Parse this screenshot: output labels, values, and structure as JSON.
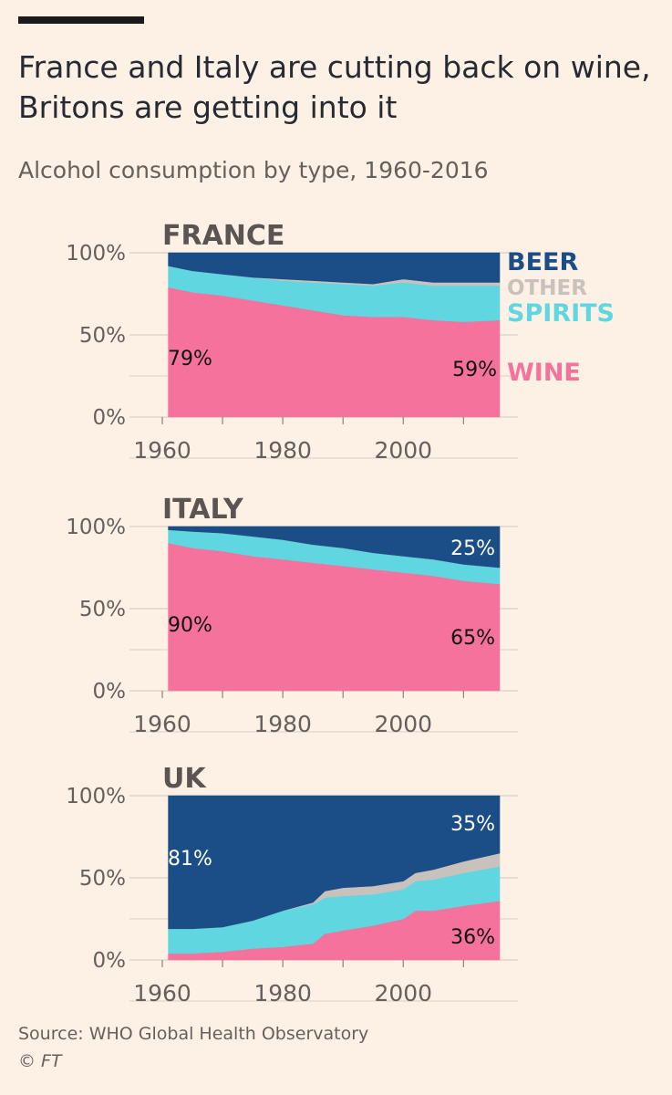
{
  "header": {
    "title": "France and Italy are cutting back on wine, Britons are getting into it",
    "subtitle": "Alcohol consumption by type, 1960-2016"
  },
  "footer": {
    "source": "Source: WHO Global Health Observatory",
    "copyright": "© FT"
  },
  "legend": [
    "BEER",
    "OTHER",
    "SPIRITS",
    "WINE"
  ],
  "colors": {
    "beer": "#1b4d86",
    "other": "#c9c2bc",
    "spirits": "#5fd6e0",
    "wine": "#f5729c",
    "grid": "#d9cfc7",
    "axis_text": "#66605c",
    "panel_title": "#5a5552"
  },
  "chart_data": [
    {
      "type": "area",
      "title": "FRANCE",
      "stacked": true,
      "x": [
        1961,
        1965,
        1970,
        1975,
        1980,
        1985,
        1990,
        1995,
        2000,
        2005,
        2010,
        2016
      ],
      "series": [
        {
          "name": "WINE",
          "values": [
            79,
            76,
            74,
            71,
            68,
            65,
            62,
            61,
            61,
            59,
            58,
            59
          ]
        },
        {
          "name": "SPIRITS",
          "values": [
            13,
            13,
            13,
            14,
            15,
            17,
            19,
            19,
            21,
            21,
            22,
            21
          ]
        },
        {
          "name": "OTHER",
          "values": [
            0,
            0,
            0,
            0,
            1,
            1,
            1,
            1,
            2,
            2,
            2,
            2
          ]
        },
        {
          "name": "BEER",
          "values": [
            8,
            11,
            13,
            15,
            16,
            17,
            18,
            19,
            16,
            18,
            18,
            18
          ]
        }
      ],
      "xlim": [
        1960,
        2016
      ],
      "ylim": [
        0,
        100
      ],
      "ytick_labels": [
        "0%",
        "50%",
        "100%"
      ],
      "xtick_labels": [
        "1960",
        "1980",
        "2000"
      ],
      "annotations": [
        "79%",
        "59%"
      ],
      "legend_placement": "right"
    },
    {
      "type": "area",
      "title": "ITALY",
      "stacked": true,
      "x": [
        1961,
        1965,
        1970,
        1975,
        1980,
        1985,
        1990,
        1995,
        2000,
        2005,
        2010,
        2016
      ],
      "series": [
        {
          "name": "WINE",
          "values": [
            90,
            87,
            85,
            82,
            80,
            78,
            76,
            74,
            72,
            70,
            67,
            65
          ]
        },
        {
          "name": "SPIRITS",
          "values": [
            8,
            10,
            11,
            12,
            12,
            11,
            11,
            10,
            10,
            10,
            10,
            10
          ]
        },
        {
          "name": "OTHER",
          "values": [
            0,
            0,
            0,
            0,
            0,
            0,
            0,
            0,
            0,
            0,
            0,
            0
          ]
        },
        {
          "name": "BEER",
          "values": [
            2,
            3,
            4,
            6,
            8,
            11,
            13,
            16,
            18,
            20,
            23,
            25
          ]
        }
      ],
      "xlim": [
        1960,
        2016
      ],
      "ylim": [
        0,
        100
      ],
      "ytick_labels": [
        "0%",
        "50%",
        "100%"
      ],
      "xtick_labels": [
        "1960",
        "1980",
        "2000"
      ],
      "annotations": [
        "25%",
        "90%",
        "65%"
      ]
    },
    {
      "type": "area",
      "title": "UK",
      "stacked": true,
      "x": [
        1961,
        1965,
        1970,
        1975,
        1980,
        1985,
        1987,
        1990,
        1995,
        2000,
        2002,
        2005,
        2010,
        2016
      ],
      "series": [
        {
          "name": "WINE",
          "values": [
            4,
            4,
            5,
            7,
            8,
            10,
            16,
            18,
            21,
            25,
            30,
            30,
            33,
            36
          ]
        },
        {
          "name": "SPIRITS",
          "values": [
            15,
            15,
            15,
            17,
            22,
            24,
            22,
            21,
            19,
            18,
            18,
            19,
            20,
            21
          ]
        },
        {
          "name": "OTHER",
          "values": [
            0,
            0,
            0,
            0,
            0,
            1,
            4,
            5,
            5,
            5,
            5,
            6,
            7,
            8
          ]
        },
        {
          "name": "BEER",
          "values": [
            81,
            81,
            80,
            76,
            70,
            65,
            58,
            56,
            55,
            52,
            47,
            45,
            40,
            35
          ]
        }
      ],
      "xlim": [
        1960,
        2016
      ],
      "ylim": [
        0,
        100
      ],
      "ytick_labels": [
        "0%",
        "50%",
        "100%"
      ],
      "xtick_labels": [
        "1960",
        "1980",
        "2000"
      ],
      "annotations": [
        "35%",
        "81%",
        "36%"
      ]
    }
  ]
}
